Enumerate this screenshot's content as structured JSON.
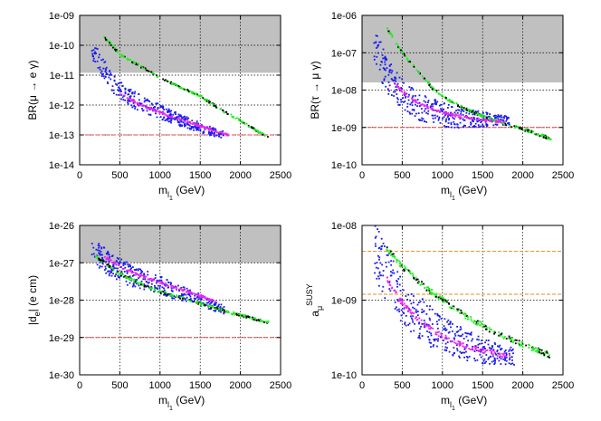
{
  "figure": {
    "x_axis": {
      "range": [
        0,
        2500
      ],
      "ticks": [
        0,
        500,
        1000,
        1500,
        2000,
        2500
      ],
      "label_main": "m",
      "label_sub": "l",
      "label_subsub": "1",
      "label_unit": "(GeV)"
    },
    "colors": {
      "excluded": "#c0c0c0",
      "green": "#22ee22",
      "black": "#000000",
      "blue": "#1a1aee",
      "magenta": "#ee22ee",
      "red": "#ee4444",
      "orange": "#ee8822"
    }
  },
  "chart_data": [
    {
      "id": "br-mu-e-gamma",
      "type": "scatter",
      "ylabel": "BR(μ → e γ)",
      "yscale": "log",
      "ylim": [
        1e-14,
        1e-09
      ],
      "ytick_labels": [
        "1e-14",
        "1e-13",
        "1e-12",
        "1e-11",
        "1e-10",
        "1e-09"
      ],
      "excluded_above": 1.2e-11,
      "ref_lines": [
        {
          "value": 1e-13,
          "color": "red"
        }
      ],
      "series": [
        {
          "name": "green band",
          "x": [
            300,
            500,
            800,
            1000,
            1300,
            1500,
            1800,
            2000,
            2350
          ],
          "y": [
            2e-10,
            5e-11,
            1.7e-11,
            8e-12,
            3.5e-12,
            2e-12,
            6e-13,
            3e-13,
            8e-14
          ]
        },
        {
          "name": "blue scatter",
          "x": [
            150,
            250,
            400,
            600,
            800,
            1000,
            1200,
            1400,
            1600,
            1800
          ],
          "y": [
            7e-11,
            2.5e-11,
            6e-12,
            2e-12,
            1e-12,
            6e-13,
            3.5e-13,
            2.2e-13,
            1.4e-13,
            1e-13
          ]
        },
        {
          "name": "magenta curve",
          "x": [
            500,
            700,
            900,
            1100,
            1300,
            1500,
            1700,
            1850
          ],
          "y": [
            2.5e-12,
            1.2e-12,
            7e-13,
            4.5e-13,
            3e-13,
            2e-13,
            1.3e-13,
            1e-13
          ]
        }
      ]
    },
    {
      "id": "br-tau-mu-gamma",
      "type": "scatter",
      "ylabel": "BR(τ → μ γ)",
      "yscale": "log",
      "ylim": [
        1e-10,
        1e-06
      ],
      "ytick_labels": [
        "1e-10",
        "1e-09",
        "1e-08",
        "1e-07",
        "1e-06"
      ],
      "excluded_above": 1.6e-08,
      "ref_lines": [
        {
          "value": 1e-09,
          "color": "red"
        }
      ],
      "series": [
        {
          "name": "green band",
          "x": [
            300,
            500,
            700,
            900,
            1100,
            1300,
            1500,
            1800,
            2000,
            2350
          ],
          "y": [
            5e-07,
            1e-07,
            3e-08,
            1e-08,
            5e-09,
            3e-09,
            2e-09,
            1.2e-09,
            9e-10,
            5e-10
          ]
        },
        {
          "name": "blue scatter",
          "x": [
            150,
            250,
            400,
            600,
            800,
            1000,
            1200,
            1400,
            1600,
            1850
          ],
          "y": [
            2e-07,
            5e-08,
            1.2e-08,
            5e-09,
            3e-09,
            2.2e-09,
            1.8e-09,
            1.7e-09,
            1.6e-09,
            1.5e-09
          ]
        },
        {
          "name": "magenta curve",
          "x": [
            400,
            600,
            800,
            1000,
            1200,
            1400,
            1600,
            1800
          ],
          "y": [
            1.5e-08,
            6e-09,
            3.5e-09,
            2.5e-09,
            2e-09,
            1.7e-09,
            1.5e-09,
            1.4e-09
          ]
        }
      ]
    },
    {
      "id": "electron-edm",
      "type": "scatter",
      "ylabel": "|d",
      "ylabel_sub": "e",
      "ylabel_unit": "| (e cm)",
      "yscale": "log",
      "ylim": [
        1e-30,
        1e-26
      ],
      "ytick_labels": [
        "1e-30",
        "1e-29",
        "1e-28",
        "1e-27",
        "1e-26"
      ],
      "excluded_above": 1e-27,
      "ref_lines": [
        {
          "value": 1e-29,
          "color": "red"
        }
      ],
      "series": [
        {
          "name": "green band",
          "x": [
            200,
            500,
            800,
            1000,
            1300,
            1600,
            1900,
            2100,
            2350
          ],
          "y": [
            1.5e-27,
            5e-28,
            2.5e-28,
            1.7e-28,
            1.1e-28,
            7e-29,
            4.5e-29,
            3.5e-29,
            2.5e-29
          ]
        },
        {
          "name": "blue scatter",
          "x": [
            150,
            250,
            400,
            600,
            800,
            1000,
            1200,
            1400,
            1600,
            1800
          ],
          "y": [
            2.5e-27,
            1.5e-27,
            8e-28,
            5e-28,
            3.5e-28,
            2.5e-28,
            1.7e-28,
            1.2e-28,
            8e-29,
            5.5e-29
          ]
        },
        {
          "name": "magenta curve",
          "x": [
            300,
            500,
            700,
            900,
            1100,
            1300,
            1500,
            1700
          ],
          "y": [
            1.5e-27,
            8e-28,
            5e-28,
            3.5e-28,
            2.5e-28,
            1.8e-28,
            1.3e-28,
            9e-29
          ]
        }
      ]
    },
    {
      "id": "muon-g-2",
      "type": "scatter",
      "ylabel": "a",
      "ylabel_sub": "μ",
      "ylabel_sup": "SUSY",
      "yscale": "log",
      "ylim": [
        1e-10,
        1e-08
      ],
      "ytick_labels": [
        "1e-10",
        "1e-09",
        "1e-08"
      ],
      "excluded_above": null,
      "ref_lines": [
        {
          "value": 4.5e-09,
          "color": "orange"
        },
        {
          "value": 1.2e-09,
          "color": "orange"
        }
      ],
      "series": [
        {
          "name": "green band",
          "x": [
            300,
            500,
            700,
            900,
            1100,
            1300,
            1600,
            1900,
            2100,
            2350
          ],
          "y": [
            5e-09,
            2.8e-09,
            1.8e-09,
            1.2e-09,
            8.5e-10,
            6e-10,
            4e-10,
            2.8e-10,
            2.3e-10,
            1.8e-10
          ]
        },
        {
          "name": "blue scatter",
          "x": [
            150,
            300,
            500,
            700,
            900,
            1100,
            1300,
            1500,
            1700,
            1900
          ],
          "y": [
            5e-09,
            2.2e-09,
            1e-09,
            6e-10,
            4e-10,
            3e-10,
            2.5e-10,
            2.1e-10,
            1.9e-10,
            1.75e-10
          ]
        },
        {
          "name": "magenta curve",
          "x": [
            300,
            500,
            700,
            900,
            1100,
            1300,
            1500,
            1700,
            1850
          ],
          "y": [
            2e-09,
            9e-10,
            5.5e-10,
            3.8e-10,
            2.9e-10,
            2.4e-10,
            2.1e-10,
            1.9e-10,
            1.8e-10
          ]
        }
      ]
    }
  ]
}
